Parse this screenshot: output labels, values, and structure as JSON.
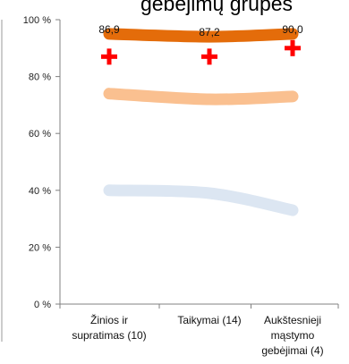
{
  "chart_data": {
    "type": "line",
    "title": "gebėjimų grupes",
    "categories": [
      "Žinios ir supratimas (10)",
      "Taikymai (14)",
      "Aukštesnieji mąstymo gebėjimai (4)"
    ],
    "category_lines": [
      [
        "Žinios ir",
        "supratimas (10)"
      ],
      [
        "Taikymai (14)"
      ],
      [
        "Aukštesnieji",
        "mąstymo",
        "gebėjimai (4)"
      ]
    ],
    "ylim": [
      0,
      100
    ],
    "yticks": [
      0,
      20,
      40,
      60,
      80,
      100
    ],
    "ytick_labels": [
      "0 %",
      "20 %",
      "40 %",
      "60 %",
      "80 %",
      "100 %"
    ],
    "grid": false,
    "series": [
      {
        "values": [
          95,
          94,
          95
        ],
        "color": "#E46C0A",
        "data_labels": [
          "86,9",
          "87,2",
          "90,0"
        ]
      },
      {
        "values": [
          74,
          72,
          73
        ],
        "color": "#FAC090"
      },
      {
        "values": [
          40,
          39,
          33
        ],
        "color": "#DCE6F2"
      }
    ],
    "markers": {
      "values": [
        87,
        87,
        90
      ],
      "color": "#FF0000",
      "shape": "cross"
    }
  }
}
